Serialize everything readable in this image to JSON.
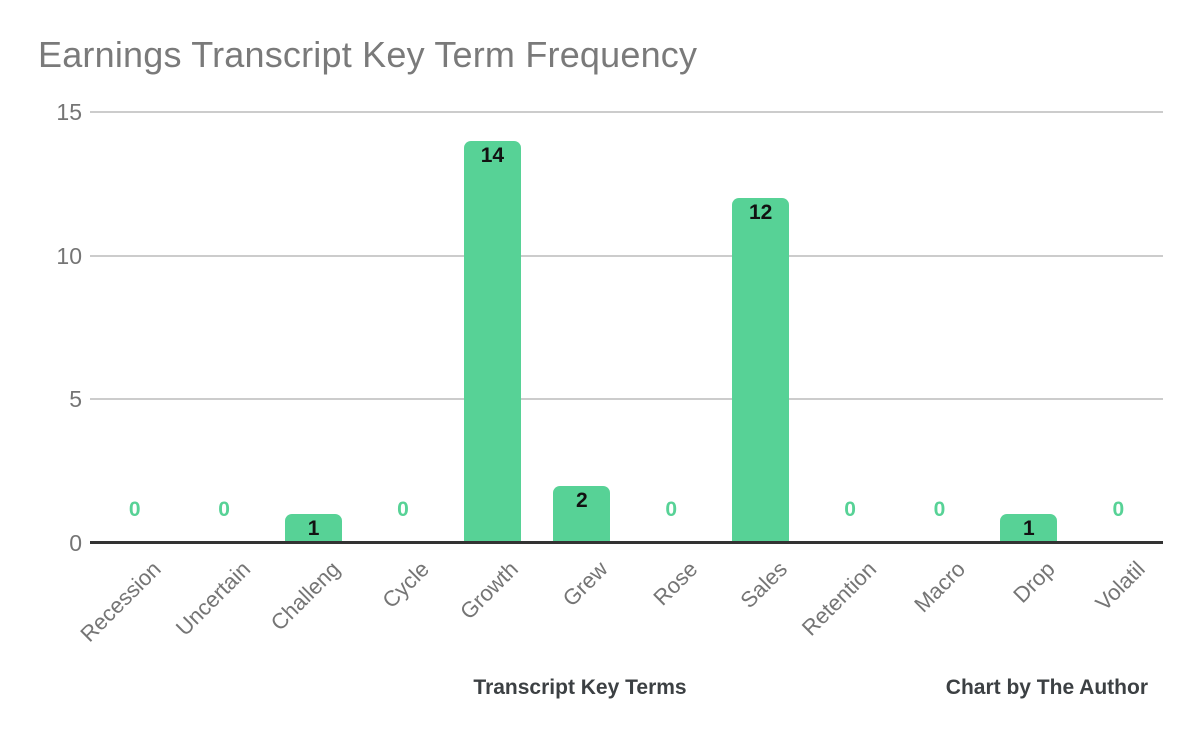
{
  "chart_data": {
    "type": "bar",
    "title": "Earnings Transcript Key Term Frequency",
    "categories": [
      "Recession",
      "Uncertain",
      "Challeng",
      "Cycle",
      "Growth",
      "Grew",
      "Rose",
      "Sales",
      "Retention",
      "Macro",
      "Drop",
      "Volatil"
    ],
    "values": [
      0,
      0,
      1,
      0,
      14,
      2,
      0,
      12,
      0,
      0,
      1,
      0
    ],
    "xlabel": "Transcript Key Terms",
    "credit": "Chart by The Author",
    "ylim": [
      0,
      15
    ],
    "yticks": [
      0,
      5,
      10,
      15
    ],
    "grid": true,
    "legend": false,
    "colors": {
      "bar": "#57d296",
      "zero_label": "#57d296",
      "value_label": "#121212",
      "title": "#7a7a7a",
      "tick": "#757575",
      "axis_title": "#3c4043",
      "gridline": "#cccccc",
      "baseline": "#333333"
    }
  }
}
